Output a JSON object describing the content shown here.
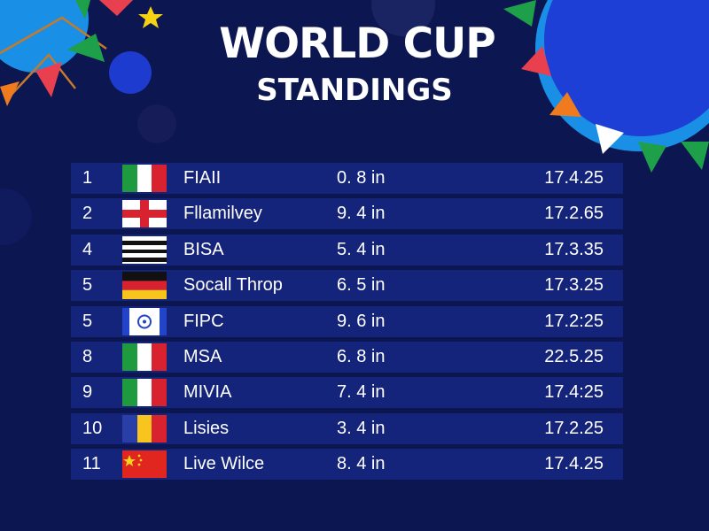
{
  "title": {
    "line1": "WORLD CUP",
    "line2": "STANDINGS"
  },
  "colors": {
    "background": "#0c1650",
    "row": "#14247a",
    "text": "#ffffff"
  },
  "rows": [
    {
      "rank": "1",
      "flag": "italy-flag",
      "team": "FIAII",
      "score": "0. 8 in",
      "date": "17.4.25"
    },
    {
      "rank": "2",
      "flag": "england-flag",
      "team": "Fllamilvey",
      "score": "9. 4 in",
      "date": "17.2.65"
    },
    {
      "rank": "4",
      "flag": "striped-flag",
      "team": "BISA",
      "score": "5. 4 in",
      "date": "17.3.35"
    },
    {
      "rank": "5",
      "flag": "germany-flag",
      "team": "Socall Throp",
      "score": "6. 5 in",
      "date": "17.3.25"
    },
    {
      "rank": "5",
      "flag": "india-flag",
      "team": "FIPC",
      "score": "9. 6 in",
      "date": "17.2:25"
    },
    {
      "rank": "8",
      "flag": "italy-flag",
      "team": "MSA",
      "score": "6. 8 in",
      "date": "22.5.25"
    },
    {
      "rank": "9",
      "flag": "italy-flag",
      "team": "MIVIA",
      "score": "7. 4 in",
      "date": "17.4:25"
    },
    {
      "rank": "10",
      "flag": "romania-flag",
      "team": "Lisies",
      "score": "3. 4 in",
      "date": "17.2.25"
    },
    {
      "rank": "11",
      "flag": "china-flag",
      "team": "Live Wilce",
      "score": "8. 4 in",
      "date": "17.4.25"
    }
  ]
}
